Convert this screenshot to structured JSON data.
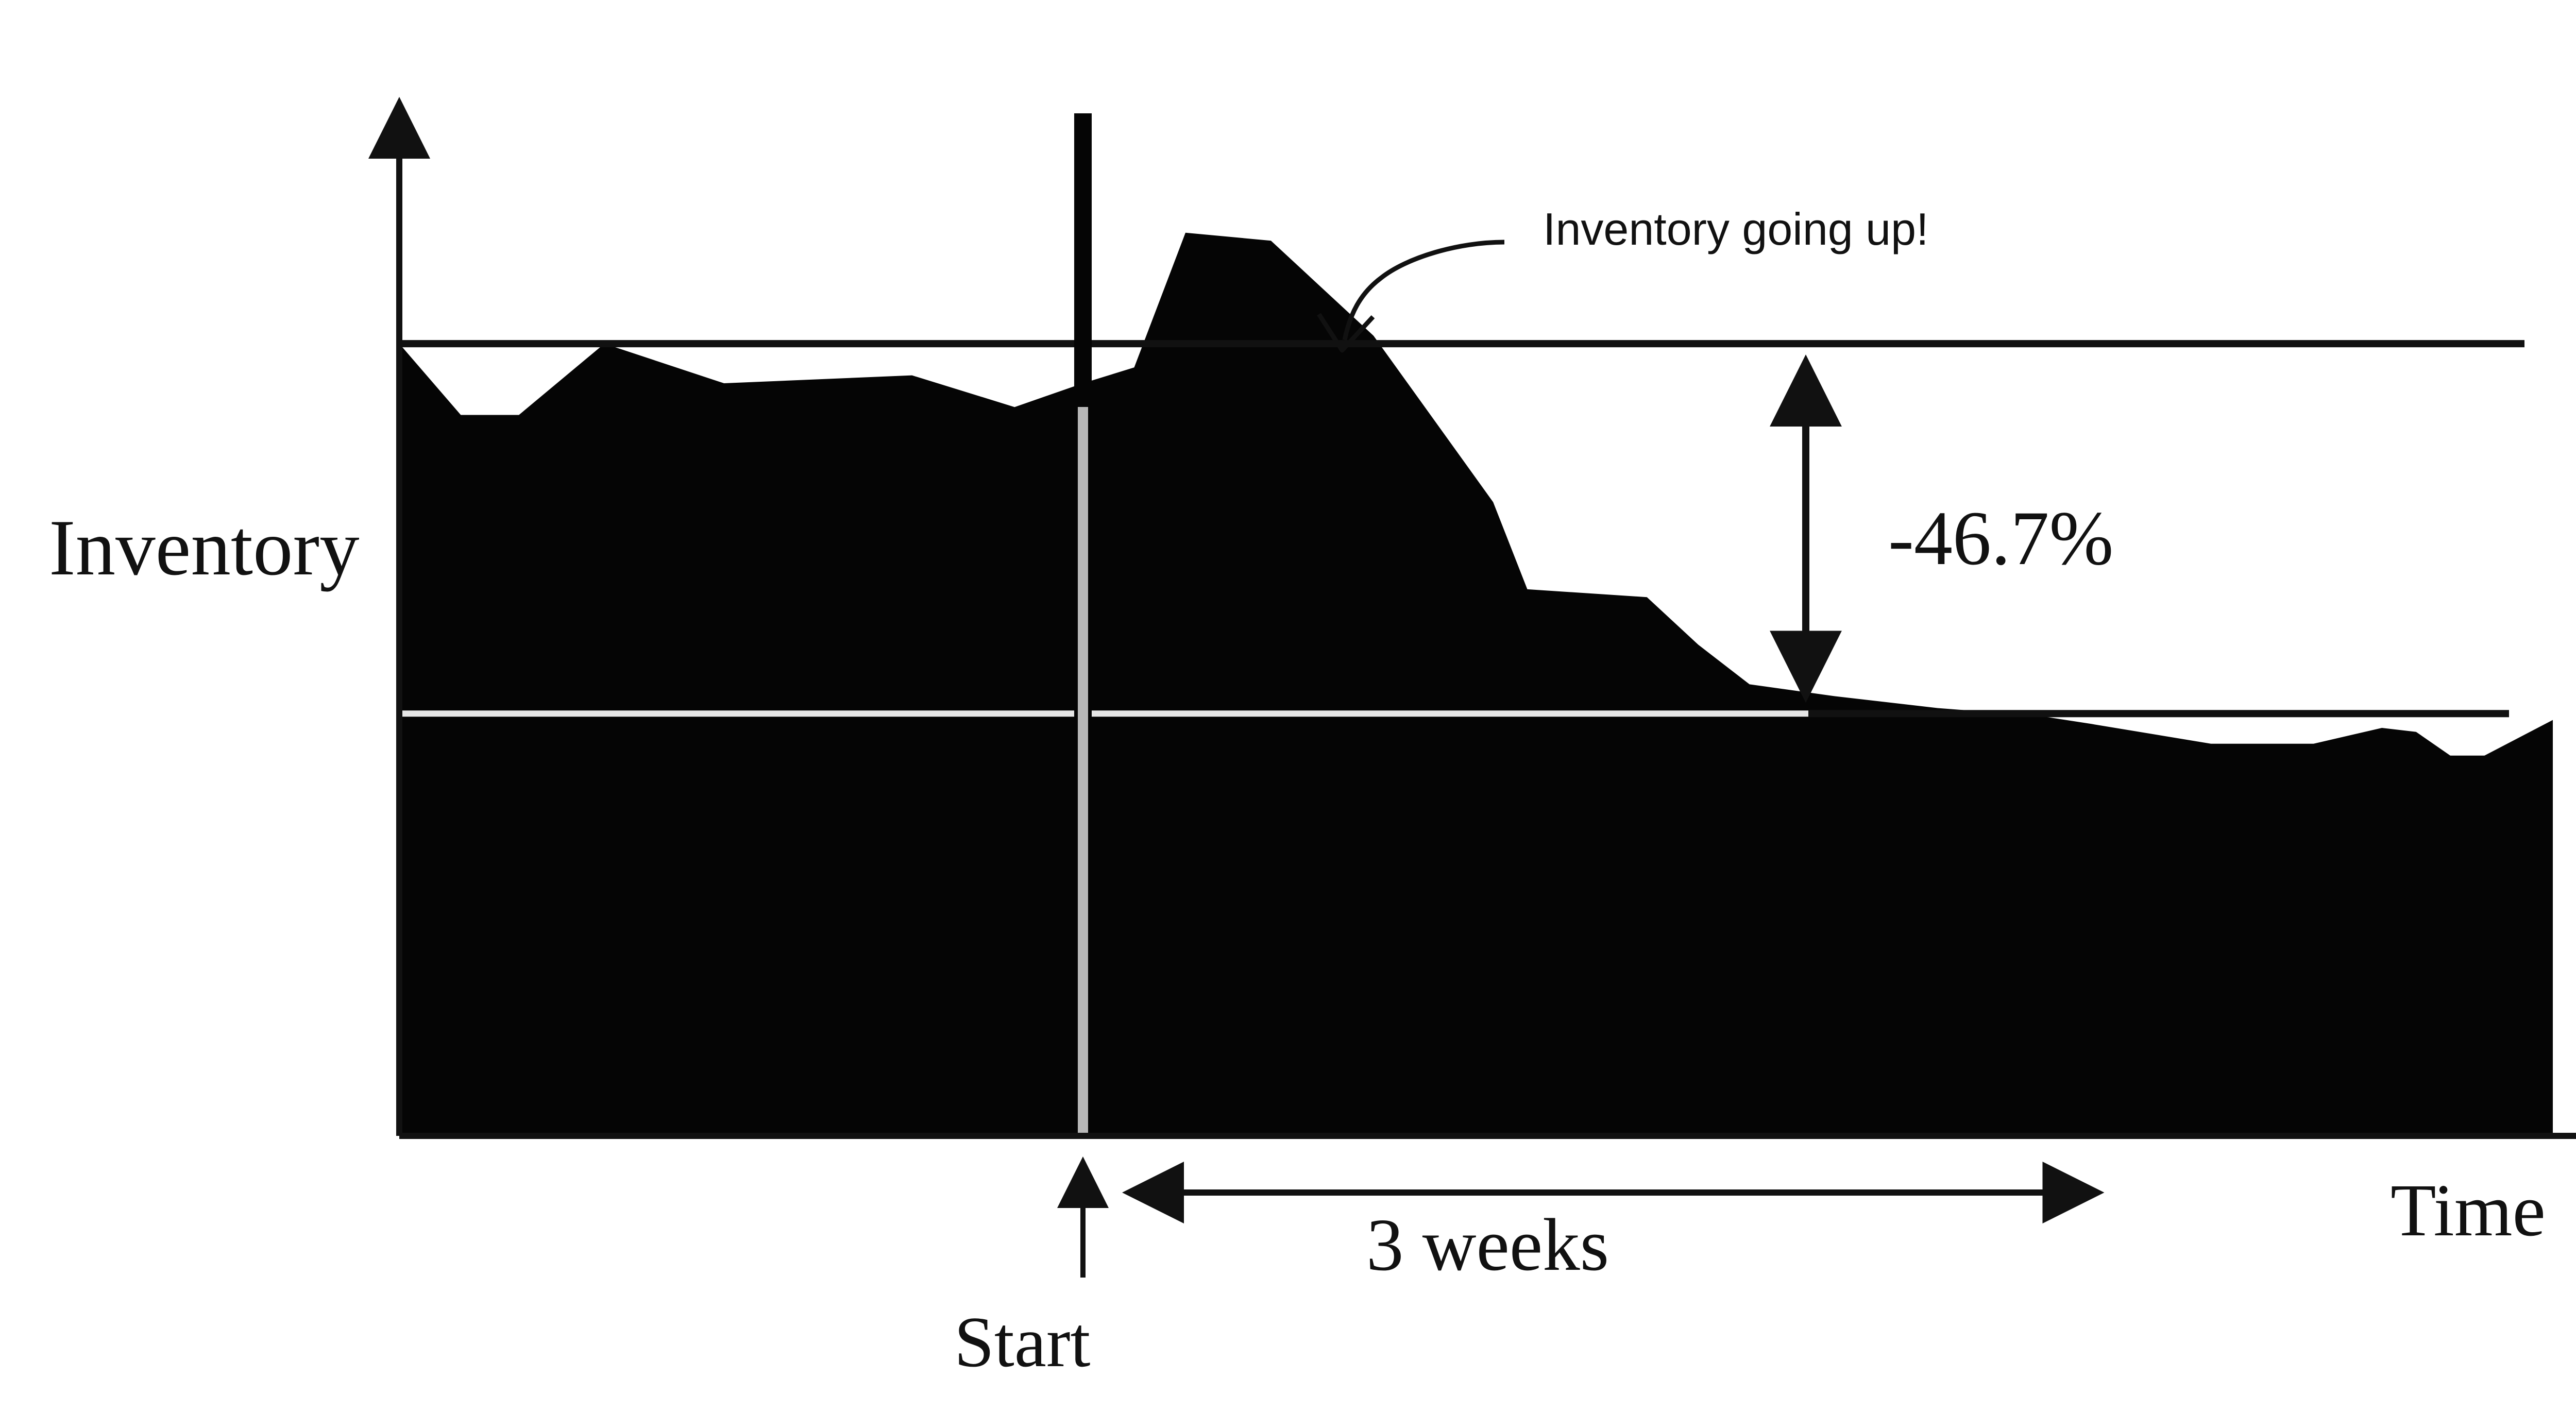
{
  "chart_data": {
    "type": "area",
    "ylabel": "Inventory",
    "xlabel": "Time",
    "start_label": "Start",
    "duration_label": "3 weeks",
    "change_label": "-46.7%",
    "callout": "Inventory going up!",
    "reference_levels": {
      "before": 100,
      "after": 53.3
    },
    "axis": {
      "x_range": [
        0,
        6.3
      ],
      "y_range": [
        0,
        132
      ],
      "x_unit": "weeks"
    },
    "start_week": 2,
    "duration_weeks": 3,
    "series": [
      {
        "x": [
          0,
          0.18,
          0.35,
          0.6,
          0.95,
          1.5,
          1.8,
          2.0,
          2.15,
          2.3,
          2.55,
          2.85,
          3.2,
          3.3,
          3.65,
          3.8,
          3.95,
          4.2,
          4.5,
          4.8,
          4.95,
          5.3,
          5.6,
          5.8,
          5.9,
          6.0,
          6.1,
          6.3
        ],
        "values": [
          100,
          91,
          91,
          100,
          95,
          96,
          92,
          95,
          97,
          114,
          113,
          101,
          80,
          69,
          68,
          62,
          57,
          55.5,
          54,
          53,
          52,
          49.5,
          49.5,
          51.5,
          51,
          48,
          48,
          52.5
        ]
      }
    ],
    "colors": {
      "fill": "#050505",
      "reference_line_dark": "#111111",
      "reference_line_light": "#e6e6e6",
      "start_marker": "#b8b8b8"
    }
  }
}
